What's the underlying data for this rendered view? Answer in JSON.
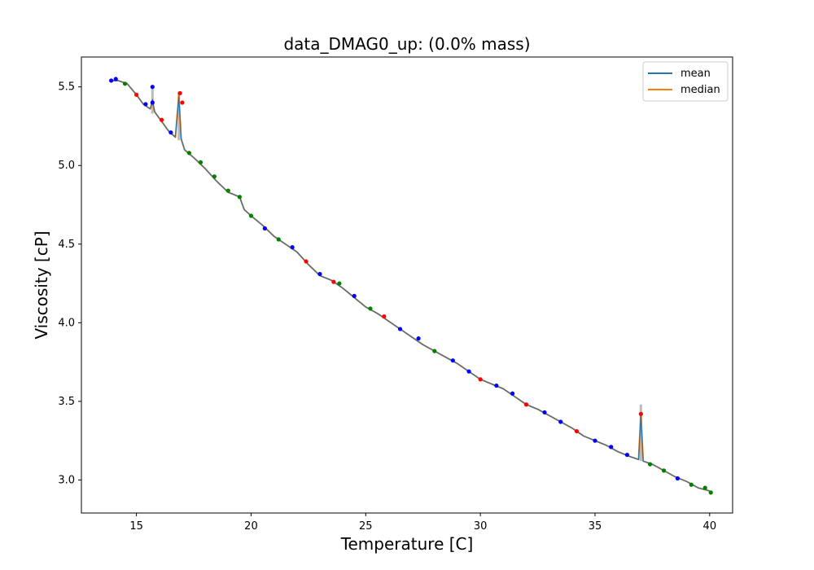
{
  "chart_data": {
    "type": "line",
    "title": "data_DMAG0_up: (0.0% mass)",
    "xlabel": "Temperature [C]",
    "ylabel": "Viscosity [cP]",
    "xlim": [
      12.6,
      41.0
    ],
    "ylim": [
      2.79,
      5.69
    ],
    "xticks": [
      15,
      20,
      25,
      30,
      35,
      40
    ],
    "yticks": [
      3.0,
      3.5,
      4.0,
      4.5,
      5.0,
      5.5
    ],
    "xtick_labels": [
      "15",
      "20",
      "25",
      "30",
      "35",
      "40"
    ],
    "ytick_labels": [
      "3.0",
      "3.5",
      "4.0",
      "4.5",
      "5.0",
      "5.5"
    ],
    "grid": false,
    "legend": {
      "placement": "top-right",
      "entries": [
        {
          "label": "mean",
          "color": "#1f77b4"
        },
        {
          "label": "median",
          "color": "#ff7f0e"
        }
      ]
    },
    "series": [
      {
        "name": "median",
        "color": "#ff7f0e",
        "x": [
          13.9,
          14.2,
          14.6,
          15.0,
          15.3,
          15.6,
          15.7,
          15.8,
          16.0,
          16.4,
          16.7,
          16.85,
          16.95,
          17.1,
          17.5,
          18.0,
          18.5,
          19.0,
          19.5,
          19.7,
          20.0,
          20.5,
          21.0,
          21.5,
          22.0,
          22.5,
          23.0,
          23.5,
          24.0,
          24.5,
          25.0,
          25.5,
          26.0,
          26.5,
          27.0,
          27.5,
          28.0,
          28.5,
          29.0,
          29.5,
          30.0,
          30.5,
          31.0,
          31.5,
          32.0,
          32.5,
          33.0,
          33.5,
          34.0,
          34.5,
          35.0,
          35.5,
          36.0,
          36.5,
          36.9,
          37.0,
          37.1,
          37.5,
          38.0,
          38.5,
          39.0,
          39.5,
          40.0
        ],
        "y": [
          5.54,
          5.54,
          5.52,
          5.45,
          5.39,
          5.36,
          5.4,
          5.34,
          5.3,
          5.22,
          5.18,
          5.45,
          5.17,
          5.1,
          5.05,
          4.98,
          4.9,
          4.83,
          4.8,
          4.72,
          4.68,
          4.62,
          4.55,
          4.5,
          4.45,
          4.37,
          4.3,
          4.27,
          4.22,
          4.16,
          4.1,
          4.06,
          4.01,
          3.96,
          3.91,
          3.86,
          3.82,
          3.78,
          3.74,
          3.69,
          3.64,
          3.61,
          3.58,
          3.53,
          3.48,
          3.45,
          3.41,
          3.37,
          3.33,
          3.28,
          3.25,
          3.22,
          3.18,
          3.15,
          3.13,
          3.42,
          3.12,
          3.1,
          3.06,
          3.02,
          2.99,
          2.95,
          2.93
        ]
      },
      {
        "name": "mean",
        "color": "#1f77b4",
        "x": [
          13.9,
          14.2,
          14.6,
          15.0,
          15.3,
          15.6,
          15.7,
          15.8,
          16.0,
          16.4,
          16.7,
          16.85,
          16.95,
          17.1,
          17.5,
          18.0,
          18.5,
          19.0,
          19.5,
          19.7,
          20.0,
          20.5,
          21.0,
          21.5,
          22.0,
          22.5,
          23.0,
          23.5,
          24.0,
          24.5,
          25.0,
          25.5,
          26.0,
          26.5,
          27.0,
          27.5,
          28.0,
          28.5,
          29.0,
          29.5,
          30.0,
          30.5,
          31.0,
          31.5,
          32.0,
          32.5,
          33.0,
          33.5,
          34.0,
          34.5,
          35.0,
          35.5,
          36.0,
          36.5,
          36.9,
          37.0,
          37.1,
          37.5,
          38.0,
          38.5,
          39.0,
          39.5,
          40.0
        ],
        "y": [
          5.54,
          5.54,
          5.52,
          5.45,
          5.39,
          5.36,
          5.42,
          5.34,
          5.3,
          5.22,
          5.18,
          5.44,
          5.17,
          5.1,
          5.05,
          4.98,
          4.9,
          4.83,
          4.8,
          4.72,
          4.68,
          4.62,
          4.55,
          4.5,
          4.45,
          4.37,
          4.3,
          4.27,
          4.22,
          4.16,
          4.1,
          4.06,
          4.01,
          3.96,
          3.91,
          3.86,
          3.82,
          3.78,
          3.74,
          3.69,
          3.64,
          3.61,
          3.58,
          3.53,
          3.48,
          3.45,
          3.41,
          3.37,
          3.33,
          3.28,
          3.25,
          3.22,
          3.18,
          3.15,
          3.13,
          3.42,
          3.12,
          3.1,
          3.06,
          3.02,
          2.99,
          2.95,
          2.93
        ]
      }
    ],
    "scatter_points": [
      {
        "x": 13.9,
        "y": 5.54,
        "color": "#0000ff"
      },
      {
        "x": 14.1,
        "y": 5.55,
        "color": "#0000ff"
      },
      {
        "x": 14.5,
        "y": 5.52,
        "color": "#008000"
      },
      {
        "x": 15.0,
        "y": 5.45,
        "color": "#ff0000"
      },
      {
        "x": 15.4,
        "y": 5.39,
        "color": "#0000ff"
      },
      {
        "x": 15.7,
        "y": 5.5,
        "color": "#0000ff"
      },
      {
        "x": 15.7,
        "y": 5.4,
        "color": "#0000ff"
      },
      {
        "x": 16.1,
        "y": 5.29,
        "color": "#ff0000"
      },
      {
        "x": 16.5,
        "y": 5.21,
        "color": "#0000ff"
      },
      {
        "x": 16.9,
        "y": 5.46,
        "color": "#ff0000"
      },
      {
        "x": 17.0,
        "y": 5.4,
        "color": "#ff0000"
      },
      {
        "x": 17.3,
        "y": 5.08,
        "color": "#008000"
      },
      {
        "x": 17.8,
        "y": 5.02,
        "color": "#008000"
      },
      {
        "x": 18.4,
        "y": 4.93,
        "color": "#008000"
      },
      {
        "x": 19.0,
        "y": 4.84,
        "color": "#008000"
      },
      {
        "x": 19.5,
        "y": 4.8,
        "color": "#008000"
      },
      {
        "x": 20.0,
        "y": 4.68,
        "color": "#008000"
      },
      {
        "x": 20.6,
        "y": 4.6,
        "color": "#0000ff"
      },
      {
        "x": 21.2,
        "y": 4.53,
        "color": "#008000"
      },
      {
        "x": 21.8,
        "y": 4.48,
        "color": "#0000ff"
      },
      {
        "x": 22.4,
        "y": 4.39,
        "color": "#ff0000"
      },
      {
        "x": 23.0,
        "y": 4.31,
        "color": "#0000ff"
      },
      {
        "x": 23.6,
        "y": 4.26,
        "color": "#ff0000"
      },
      {
        "x": 23.85,
        "y": 4.25,
        "color": "#008000"
      },
      {
        "x": 24.5,
        "y": 4.17,
        "color": "#0000ff"
      },
      {
        "x": 25.2,
        "y": 4.09,
        "color": "#008000"
      },
      {
        "x": 25.8,
        "y": 4.04,
        "color": "#ff0000"
      },
      {
        "x": 26.5,
        "y": 3.96,
        "color": "#0000ff"
      },
      {
        "x": 27.3,
        "y": 3.9,
        "color": "#0000ff"
      },
      {
        "x": 28.0,
        "y": 3.82,
        "color": "#008000"
      },
      {
        "x": 28.8,
        "y": 3.76,
        "color": "#0000ff"
      },
      {
        "x": 29.5,
        "y": 3.69,
        "color": "#0000ff"
      },
      {
        "x": 30.0,
        "y": 3.64,
        "color": "#ff0000"
      },
      {
        "x": 30.7,
        "y": 3.6,
        "color": "#0000ff"
      },
      {
        "x": 31.4,
        "y": 3.55,
        "color": "#0000ff"
      },
      {
        "x": 32.0,
        "y": 3.48,
        "color": "#ff0000"
      },
      {
        "x": 32.8,
        "y": 3.43,
        "color": "#0000ff"
      },
      {
        "x": 33.5,
        "y": 3.37,
        "color": "#0000ff"
      },
      {
        "x": 34.2,
        "y": 3.31,
        "color": "#ff0000"
      },
      {
        "x": 35.0,
        "y": 3.25,
        "color": "#0000ff"
      },
      {
        "x": 35.7,
        "y": 3.21,
        "color": "#0000ff"
      },
      {
        "x": 36.4,
        "y": 3.16,
        "color": "#0000ff"
      },
      {
        "x": 37.0,
        "y": 3.42,
        "color": "#ff0000"
      },
      {
        "x": 37.4,
        "y": 3.1,
        "color": "#008000"
      },
      {
        "x": 38.0,
        "y": 3.06,
        "color": "#008000"
      },
      {
        "x": 38.6,
        "y": 3.01,
        "color": "#0000ff"
      },
      {
        "x": 39.2,
        "y": 2.97,
        "color": "#008000"
      },
      {
        "x": 39.8,
        "y": 2.95,
        "color": "#008000"
      },
      {
        "x": 40.05,
        "y": 2.92,
        "color": "#008000"
      }
    ],
    "error_spikes": [
      {
        "x": 15.7,
        "y_low": 5.33,
        "y_high": 5.5
      },
      {
        "x": 16.85,
        "y_low": 5.16,
        "y_high": 5.47
      },
      {
        "x": 37.0,
        "y_low": 3.12,
        "y_high": 3.48
      }
    ]
  }
}
